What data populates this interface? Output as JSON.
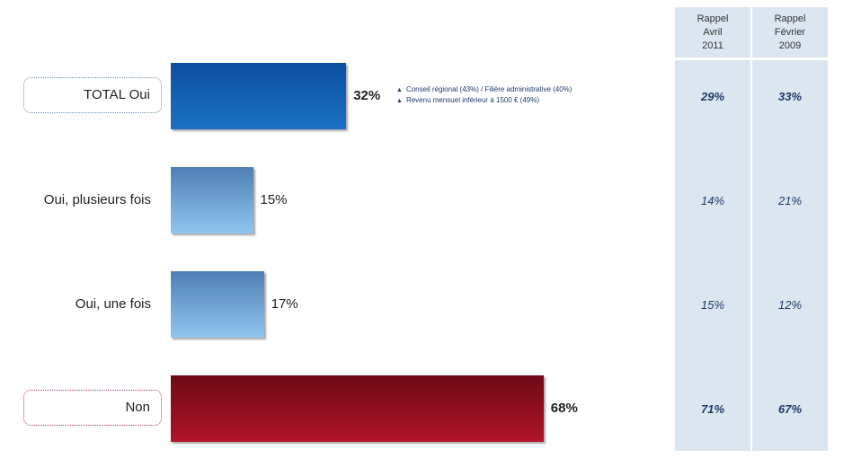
{
  "chart_data": {
    "type": "bar",
    "orientation": "horizontal",
    "categories": [
      "TOTAL Oui",
      "Oui, plusieurs fois",
      "Oui, une fois",
      "Non"
    ],
    "values": [
      32,
      15,
      17,
      68
    ],
    "value_labels": [
      "32%",
      "15%",
      "17%",
      "68%"
    ],
    "colors": [
      "#1460b0",
      "#6fa3d6",
      "#6fa3d6",
      "#950f20"
    ],
    "xlim": [
      0,
      100
    ],
    "annotation": {
      "line1": "Conseil régional (43%) / Filière administrative (40%)",
      "line2": "Revenu mensuel inférieur à 1500 € (49%)"
    },
    "recall_columns": [
      {
        "header": [
          "Rappel",
          "Avril",
          "2011"
        ],
        "values": [
          "29%",
          "14%",
          "15%",
          "71%"
        ]
      },
      {
        "header": [
          "Rappel",
          "Février",
          "2009"
        ],
        "values": [
          "33%",
          "21%",
          "12%",
          "67%"
        ]
      }
    ]
  }
}
